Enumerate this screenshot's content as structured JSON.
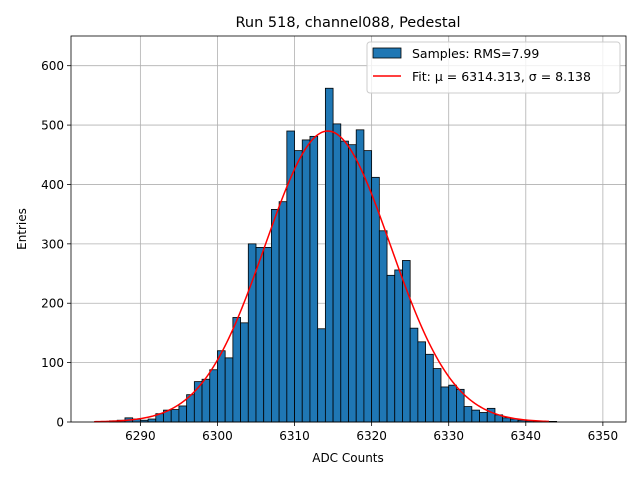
{
  "chart_data": {
    "type": "bar",
    "title": "Run 518, channel088, Pedestal",
    "xlabel": "ADC Counts",
    "ylabel": "Entries",
    "xlim": [
      6281,
      6353
    ],
    "ylim": [
      0,
      650
    ],
    "xticks": [
      6290,
      6300,
      6310,
      6320,
      6330,
      6340,
      6350
    ],
    "yticks": [
      0,
      100,
      200,
      300,
      400,
      500,
      600
    ],
    "grid": true,
    "legend_position": "top-right",
    "colors": {
      "bars": "#1f77b4",
      "bar_edge": "#000000",
      "fit": "#ff0000"
    },
    "histogram": {
      "name": "Samples: RMS=7.99",
      "bin_width": 1,
      "bin_start": [
        6286,
        6287,
        6288,
        6289,
        6290,
        6291,
        6292,
        6293,
        6294,
        6295,
        6296,
        6297,
        6298,
        6299,
        6300,
        6301,
        6302,
        6303,
        6304,
        6305,
        6306,
        6307,
        6308,
        6309,
        6310,
        6311,
        6312,
        6313,
        6314,
        6315,
        6316,
        6317,
        6318,
        6319,
        6320,
        6321,
        6322,
        6323,
        6324,
        6325,
        6326,
        6327,
        6328,
        6329,
        6330,
        6331,
        6332,
        6333,
        6334,
        6335,
        6336,
        6337,
        6338,
        6339,
        6340,
        6341,
        6342,
        6343
      ],
      "counts": [
        2,
        3,
        7,
        5,
        3,
        5,
        14,
        20,
        21,
        27,
        46,
        68,
        72,
        88,
        120,
        108,
        176,
        167,
        300,
        294,
        294,
        358,
        371,
        490,
        457,
        475,
        481,
        157,
        562,
        502,
        473,
        467,
        492,
        457,
        412,
        322,
        247,
        256,
        272,
        158,
        135,
        114,
        90,
        59,
        62,
        55,
        26,
        20,
        16,
        23,
        12,
        7,
        5,
        3,
        2,
        1,
        1,
        1
      ]
    },
    "fit": {
      "name": "Fit: μ = 6314.313, σ = 8.138",
      "mu": 6314.313,
      "sigma": 8.138,
      "peak": 490,
      "x_range": [
        6284,
        6343
      ]
    }
  }
}
